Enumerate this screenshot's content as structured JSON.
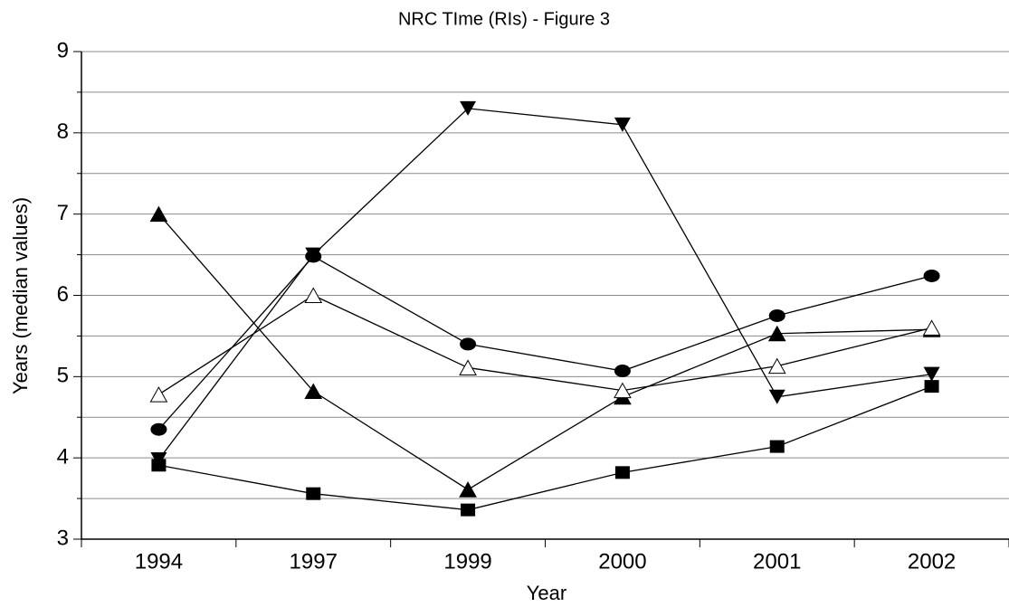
{
  "chart_data": {
    "type": "line",
    "title": "NRC TIme (RIs) - Figure 3",
    "x_label": "Year",
    "y_label": "Years (median values)",
    "categories": [
      "1994",
      "1997",
      "1999",
      "2000",
      "2001",
      "2002"
    ],
    "ylim": [
      3,
      9
    ],
    "yticks": [
      3,
      4,
      5,
      6,
      7,
      8,
      9
    ],
    "yminorticks": [
      3.5,
      4.5,
      5.5,
      6.5,
      7.5,
      8.5
    ],
    "grid": true,
    "series": [
      {
        "color": "#000000",
        "marker": "circle",
        "values": [
          4.35,
          6.48,
          5.4,
          5.07,
          5.75,
          6.24
        ]
      },
      {
        "color": "#000000",
        "marker": "triangle-down",
        "values": [
          3.98,
          6.5,
          8.3,
          8.1,
          4.75,
          5.03
        ]
      },
      {
        "color": "#000000",
        "marker": "triangle-up",
        "values": [
          7.0,
          4.82,
          3.61,
          4.75,
          5.53,
          5.58
        ]
      },
      {
        "color": "#000000",
        "marker": "triangle-up-open",
        "values": [
          4.78,
          6.0,
          5.11,
          4.83,
          5.13,
          5.6
        ]
      },
      {
        "color": "#000000",
        "marker": "square",
        "values": [
          3.91,
          3.56,
          3.36,
          3.82,
          4.14,
          4.88
        ]
      }
    ]
  }
}
